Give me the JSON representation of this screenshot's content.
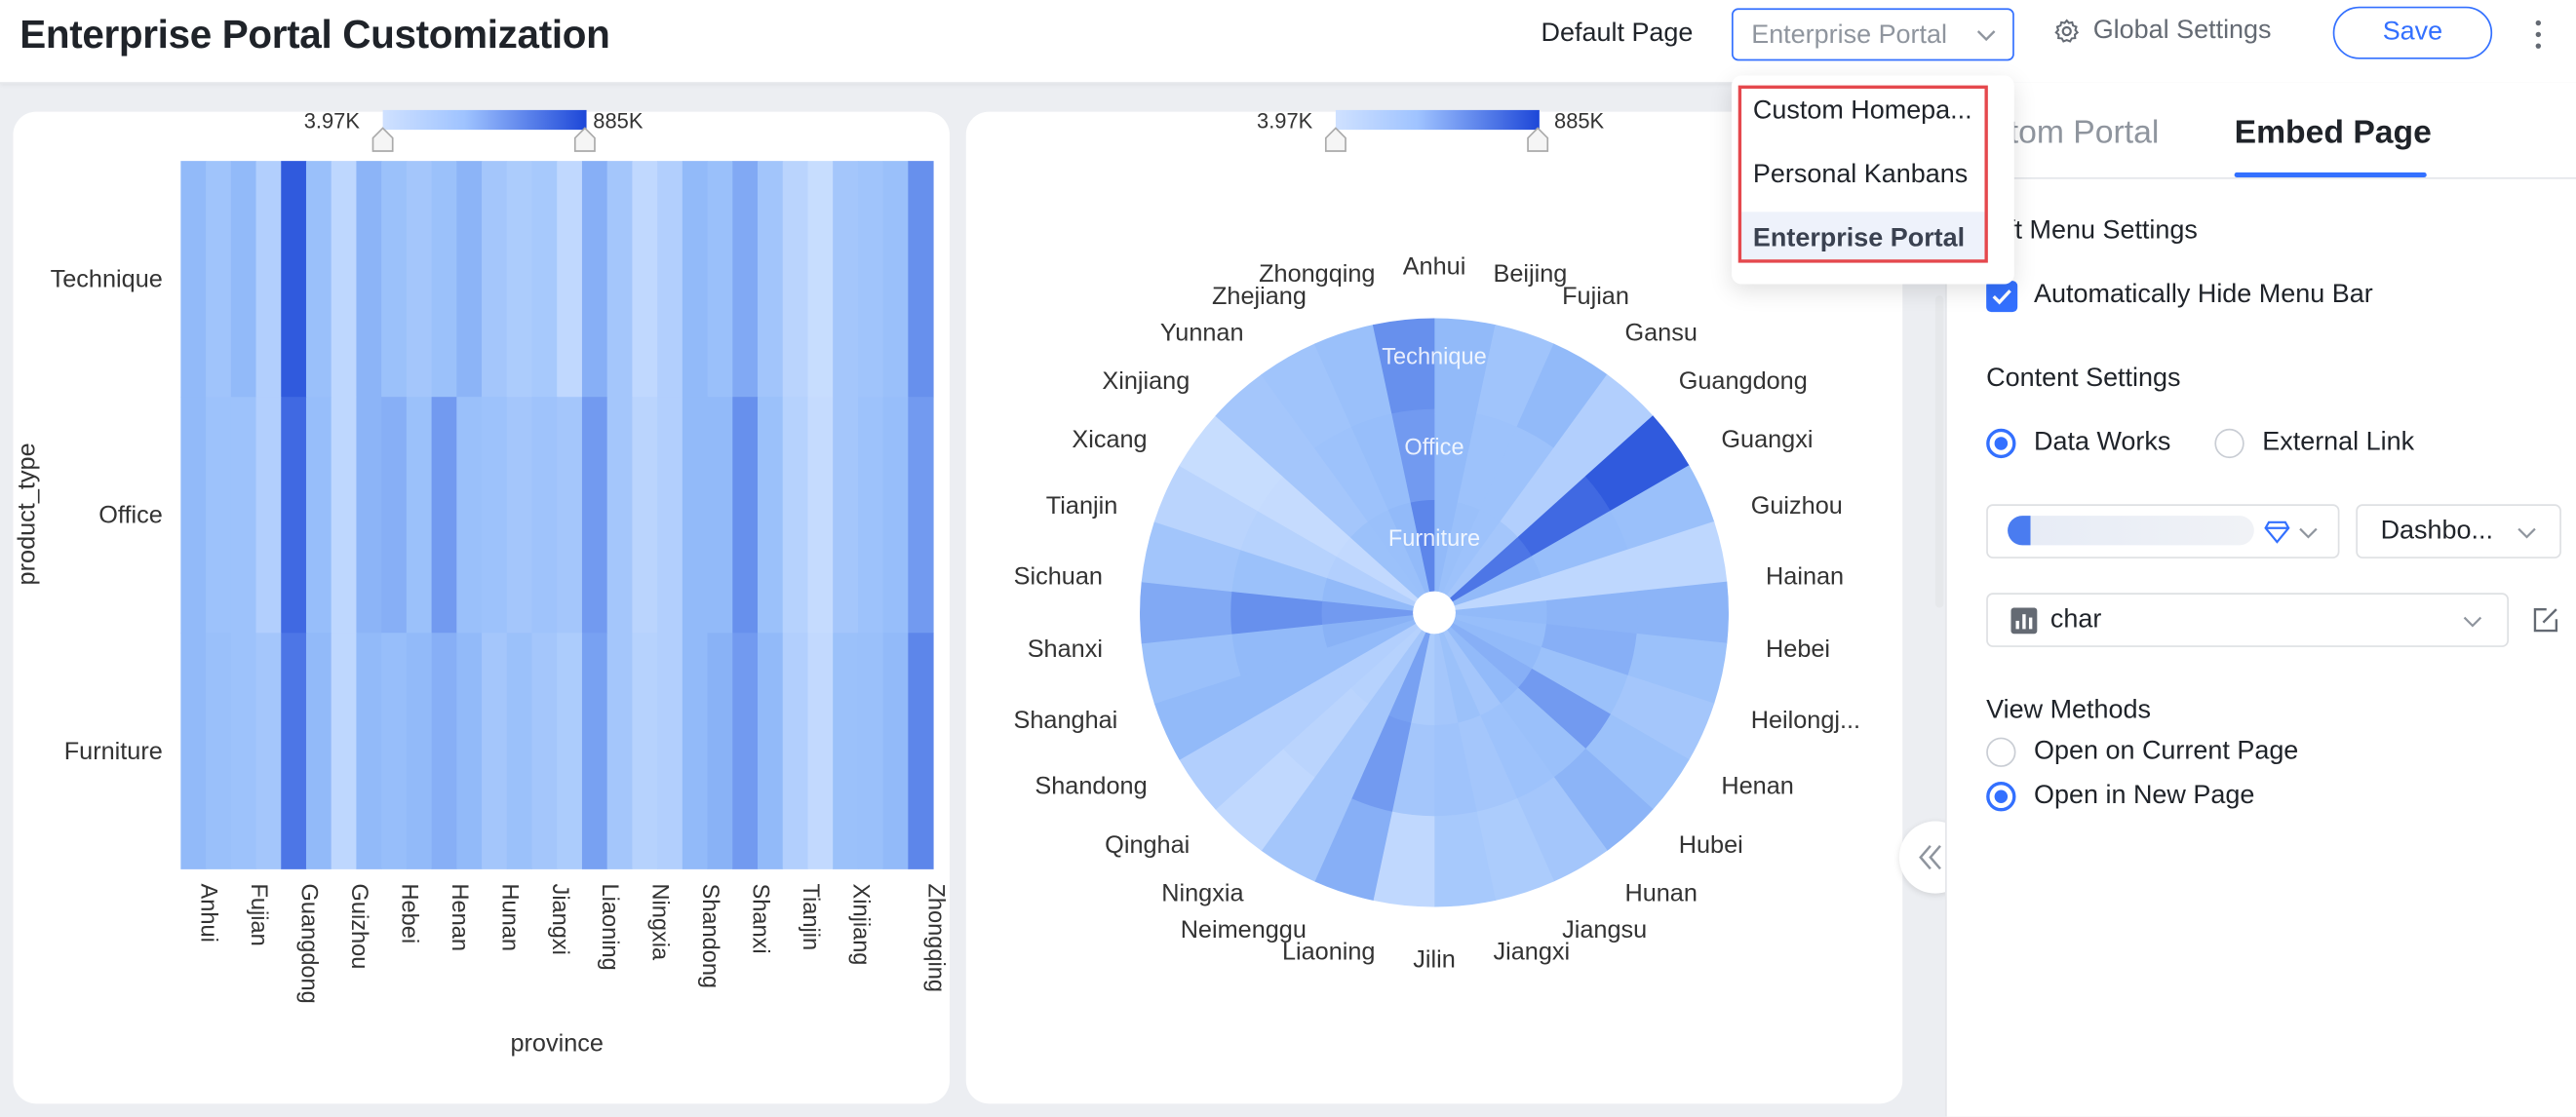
{
  "header": {
    "title": "Enterprise Portal Customization",
    "default_page_label": "Default Page",
    "default_page_value": "Enterprise Portal",
    "global_settings_label": "Global Settings",
    "save_label": "Save"
  },
  "default_page_dropdown": {
    "options": [
      "Custom Homepa...",
      "Personal Kanbans",
      "Enterprise Portal"
    ],
    "selected": "Enterprise Portal"
  },
  "right_panel": {
    "tabs": [
      "stom Portal",
      "Embed Page"
    ],
    "active_tab": "Embed Page",
    "left_menu_heading": "ft Menu Settings",
    "auto_hide_label": "Automatically Hide Menu Bar",
    "auto_hide_checked": true,
    "content_heading": "Content Settings",
    "content_options": [
      "Data Works",
      "External Link"
    ],
    "content_selected": "Data Works",
    "workspace_select_value": "",
    "type_select_value": "Dashbo...",
    "chart_select_value": "char",
    "view_heading": "View Methods",
    "view_options": [
      "Open on Current Page",
      "Open in New Page"
    ],
    "view_selected": "Open in New Page"
  },
  "colors": {
    "accent": "#3370ff",
    "highlight_border": "#e5484d",
    "heat_low": "#c9ddff",
    "heat_high": "#1d47d8"
  },
  "chart_data": [
    {
      "type": "heatmap",
      "title": "",
      "xlabel": "province",
      "ylabel": "product_type",
      "legend_min": "3.97K",
      "legend_max": "885K",
      "legend_range": [
        3970,
        885000
      ],
      "x": [
        "Anhui",
        "Beijing",
        "Fujian",
        "Gansu",
        "Guangdong",
        "Guangxi",
        "Guizhou",
        "Hainan",
        "Hebei",
        "Heilongjiang",
        "Henan",
        "Hubei",
        "Hunan",
        "Jiangsu",
        "Jiangxi",
        "Jilin",
        "Liaoning",
        "Neimenggu",
        "Ningxia",
        "Qinghai",
        "Shandong",
        "Shanghai",
        "Shanxi",
        "Sichuan",
        "Tianjin",
        "Xicang",
        "Xinjiang",
        "Yunnan",
        "Zhejiang",
        "Zhongqing"
      ],
      "x_tick_labels": [
        "Anhui",
        "Fujian",
        "Guangdong",
        "Guizhou",
        "Hebei",
        "Henan",
        "Hunan",
        "Jiangxi",
        "Liaoning",
        "Ningxia",
        "Shandong",
        "Shanxi",
        "Tianjin",
        "Xinjiang",
        "Zhongqing"
      ],
      "y": [
        "Technique",
        "Office",
        "Furniture"
      ],
      "values": [
        [
          300000,
          220000,
          300000,
          120000,
          780000,
          260000,
          60000,
          330000,
          250000,
          200000,
          250000,
          330000,
          200000,
          150000,
          180000,
          50000,
          350000,
          200000,
          50000,
          120000,
          300000,
          260000,
          380000,
          210000,
          80000,
          20000,
          200000,
          220000,
          260000,
          500000
        ],
        [
          300000,
          240000,
          240000,
          120000,
          700000,
          280000,
          60000,
          330000,
          350000,
          250000,
          450000,
          260000,
          240000,
          200000,
          230000,
          200000,
          450000,
          200000,
          80000,
          120000,
          300000,
          300000,
          500000,
          250000,
          100000,
          30000,
          200000,
          240000,
          280000,
          450000
        ],
        [
          300000,
          260000,
          240000,
          200000,
          630000,
          300000,
          60000,
          300000,
          280000,
          300000,
          350000,
          300000,
          200000,
          250000,
          200000,
          150000,
          420000,
          200000,
          100000,
          120000,
          300000,
          340000,
          450000,
          300000,
          120000,
          40000,
          250000,
          260000,
          300000,
          550000
        ]
      ]
    },
    {
      "type": "heatmap",
      "subtype": "polar",
      "title": "",
      "legend_min": "3.97K",
      "legend_max": "885K",
      "legend_range": [
        3970,
        885000
      ],
      "rings": [
        "Technique",
        "Office",
        "Furniture"
      ],
      "angular_labels": [
        "Anhui",
        "Beijing",
        "Fujian",
        "Gansu",
        "Guangdong",
        "Guangxi",
        "Guizhou",
        "Hainan",
        "Hebei",
        "Heilongj...",
        "Henan",
        "Hubei",
        "Hunan",
        "Jiangsu",
        "Jiangxi",
        "Jilin",
        "Liaoning",
        "Neimenggu",
        "Ningxia",
        "Qinghai",
        "Shandong",
        "Shanghai",
        "Shanxi",
        "Sichuan",
        "Tianjin",
        "Xicang",
        "Xinjiang",
        "Yunnan",
        "Zhejiang",
        "Zhongqing"
      ],
      "values": [
        [
          300000,
          220000,
          300000,
          120000,
          780000,
          260000,
          60000,
          330000,
          250000,
          200000,
          250000,
          330000,
          200000,
          150000,
          180000,
          50000,
          350000,
          200000,
          50000,
          120000,
          300000,
          260000,
          380000,
          210000,
          80000,
          20000,
          200000,
          220000,
          260000,
          500000
        ],
        [
          300000,
          240000,
          240000,
          120000,
          700000,
          280000,
          60000,
          330000,
          350000,
          250000,
          450000,
          260000,
          240000,
          200000,
          230000,
          200000,
          450000,
          200000,
          80000,
          120000,
          300000,
          300000,
          500000,
          250000,
          100000,
          30000,
          200000,
          240000,
          280000,
          450000
        ],
        [
          300000,
          260000,
          240000,
          200000,
          630000,
          300000,
          60000,
          300000,
          280000,
          300000,
          350000,
          300000,
          200000,
          250000,
          200000,
          150000,
          420000,
          200000,
          100000,
          120000,
          300000,
          340000,
          450000,
          300000,
          120000,
          40000,
          250000,
          260000,
          300000,
          550000
        ]
      ]
    }
  ]
}
